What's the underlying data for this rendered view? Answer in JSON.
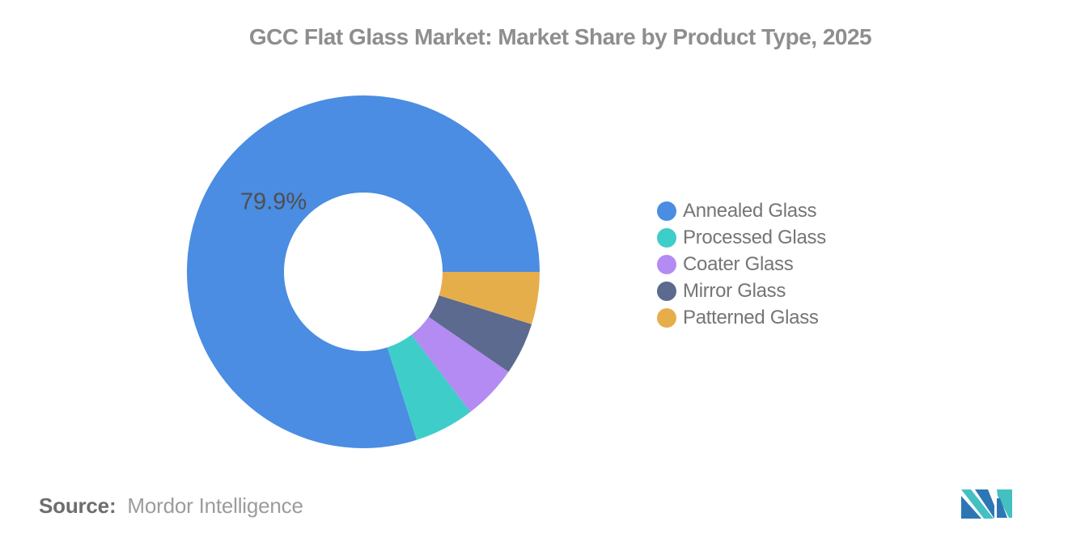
{
  "title": "GCC Flat Glass Market: Market Share by Product Type, 2025",
  "chart_data": {
    "type": "pie",
    "subtype": "donut",
    "title": "GCC Flat Glass Market: Market Share by Product Type, 2025",
    "inner_radius_ratio": 0.45,
    "start_angle_clockwise_from_top_deg": 90,
    "winding": "counterclockwise",
    "legend_position": "right",
    "series": [
      {
        "label": "Annealed Glass",
        "value": 79.9,
        "color": "#4A8DE2"
      },
      {
        "label": "Processed Glass",
        "value": 5.5,
        "color": "#3FCDC9"
      },
      {
        "label": "Coater Glass",
        "value": 5.0,
        "color": "#B48BF2"
      },
      {
        "label": "Mirror Glass",
        "value": 4.8,
        "color": "#5B6A8E"
      },
      {
        "label": "Patterned Glass",
        "value": 4.8,
        "color": "#E6AE4B"
      }
    ],
    "shown_data_label": {
      "series": "Annealed Glass",
      "text": "79.9%"
    }
  },
  "source": {
    "label": "Source:",
    "value": "Mordor Intelligence"
  },
  "logo": {
    "name": "Mordor Intelligence logo",
    "teal": "#45C0C2",
    "blue": "#2D76B4"
  }
}
